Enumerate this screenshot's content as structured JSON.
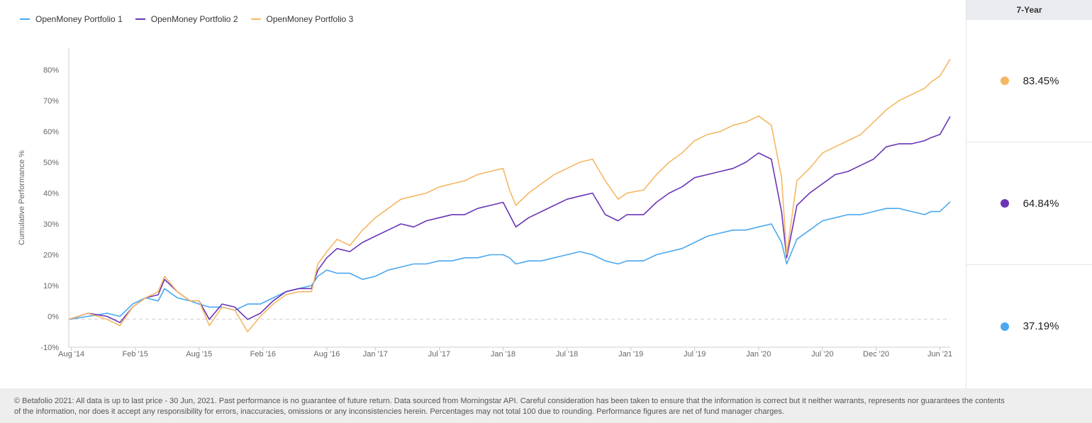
{
  "chart_data": {
    "type": "line",
    "ylabel": "Cumulative Performance %",
    "ylim": [
      -10,
      87
    ],
    "yticks": [
      -10,
      0,
      10,
      20,
      30,
      40,
      50,
      60,
      70,
      80
    ],
    "ytick_labels": [
      "-10%",
      "0%",
      "10%",
      "20%",
      "30%",
      "40%",
      "50%",
      "60%",
      "70%",
      "80%"
    ],
    "x_tick_labels": [
      "Aug '14",
      "Feb '15",
      "Aug '15",
      "Feb '16",
      "Aug '16",
      "Jan '17",
      "Jul '17",
      "Jan '18",
      "Jul '18",
      "Jan '19",
      "Jul '19",
      "Jan '20",
      "Jul '20",
      "Dec '20",
      "Jun '21"
    ],
    "x_tick_times": [
      2014.62,
      2015.12,
      2015.62,
      2016.12,
      2016.62,
      2017.0,
      2017.5,
      2018.0,
      2018.5,
      2019.0,
      2019.5,
      2020.0,
      2020.5,
      2020.92,
      2021.42
    ],
    "xlim": [
      2014.6,
      2021.5
    ],
    "grid": false,
    "legend_position": "top-left",
    "series": [
      {
        "name": "OpenMoney Portfolio 1",
        "color": "#4aa8f0",
        "x": [
          2014.6,
          2014.75,
          2014.9,
          2015.0,
          2015.1,
          2015.2,
          2015.3,
          2015.35,
          2015.45,
          2015.55,
          2015.62,
          2015.7,
          2015.8,
          2015.9,
          2016.0,
          2016.1,
          2016.2,
          2016.3,
          2016.4,
          2016.5,
          2016.55,
          2016.62,
          2016.7,
          2016.8,
          2016.9,
          2017.0,
          2017.1,
          2017.2,
          2017.3,
          2017.4,
          2017.5,
          2017.6,
          2017.7,
          2017.8,
          2017.9,
          2018.0,
          2018.05,
          2018.1,
          2018.2,
          2018.3,
          2018.4,
          2018.5,
          2018.6,
          2018.7,
          2018.8,
          2018.9,
          2018.97,
          2019.1,
          2019.2,
          2019.3,
          2019.4,
          2019.5,
          2019.6,
          2019.7,
          2019.8,
          2019.9,
          2020.0,
          2020.1,
          2020.18,
          2020.22,
          2020.3,
          2020.4,
          2020.5,
          2020.6,
          2020.7,
          2020.8,
          2020.9,
          2021.0,
          2021.1,
          2021.2,
          2021.3,
          2021.35,
          2021.42,
          2021.5
        ],
        "values": [
          -1,
          0,
          1,
          0,
          4,
          6,
          5,
          9,
          6,
          5,
          4,
          3,
          3,
          2,
          4,
          4,
          6,
          8,
          9,
          10,
          13,
          15,
          14,
          14,
          12,
          13,
          15,
          16,
          17,
          17,
          18,
          18,
          19,
          19,
          20,
          20,
          19,
          17,
          18,
          18,
          19,
          20,
          21,
          20,
          18,
          17,
          18,
          18,
          20,
          21,
          22,
          24,
          26,
          27,
          28,
          28,
          29,
          30,
          24,
          17,
          25,
          28,
          31,
          32,
          33,
          33,
          34,
          35,
          35,
          34,
          33,
          34,
          34,
          37.19
        ]
      },
      {
        "name": "OpenMoney Portfolio 2",
        "color": "#6a35b5",
        "x": [
          2014.6,
          2014.75,
          2014.9,
          2015.0,
          2015.1,
          2015.2,
          2015.3,
          2015.35,
          2015.45,
          2015.55,
          2015.62,
          2015.7,
          2015.8,
          2015.9,
          2016.0,
          2016.1,
          2016.2,
          2016.3,
          2016.4,
          2016.5,
          2016.55,
          2016.62,
          2016.7,
          2016.8,
          2016.9,
          2017.0,
          2017.1,
          2017.2,
          2017.3,
          2017.4,
          2017.5,
          2017.6,
          2017.7,
          2017.8,
          2017.9,
          2018.0,
          2018.05,
          2018.1,
          2018.2,
          2018.3,
          2018.4,
          2018.5,
          2018.6,
          2018.7,
          2018.8,
          2018.9,
          2018.97,
          2019.1,
          2019.2,
          2019.3,
          2019.4,
          2019.5,
          2019.6,
          2019.7,
          2019.8,
          2019.9,
          2020.0,
          2020.1,
          2020.18,
          2020.22,
          2020.3,
          2020.4,
          2020.5,
          2020.6,
          2020.7,
          2020.8,
          2020.9,
          2021.0,
          2021.1,
          2021.2,
          2021.3,
          2021.35,
          2021.42,
          2021.5
        ],
        "values": [
          -1,
          1,
          0,
          -2,
          3,
          6,
          7,
          12,
          8,
          5,
          5,
          -1,
          4,
          3,
          -1,
          1,
          5,
          8,
          9,
          9,
          15,
          19,
          22,
          21,
          24,
          26,
          28,
          30,
          29,
          31,
          32,
          33,
          33,
          35,
          36,
          37,
          33,
          29,
          32,
          34,
          36,
          38,
          39,
          40,
          33,
          31,
          33,
          33,
          37,
          40,
          42,
          45,
          46,
          47,
          48,
          50,
          53,
          51,
          34,
          19,
          36,
          40,
          43,
          46,
          47,
          49,
          51,
          55,
          56,
          56,
          57,
          58,
          59,
          64.84
        ]
      },
      {
        "name": "OpenMoney Portfolio 3",
        "color": "#f5b764",
        "x": [
          2014.6,
          2014.75,
          2014.9,
          2015.0,
          2015.1,
          2015.2,
          2015.3,
          2015.35,
          2015.45,
          2015.55,
          2015.62,
          2015.7,
          2015.8,
          2015.9,
          2016.0,
          2016.1,
          2016.2,
          2016.3,
          2016.4,
          2016.5,
          2016.55,
          2016.62,
          2016.7,
          2016.8,
          2016.9,
          2017.0,
          2017.1,
          2017.2,
          2017.3,
          2017.4,
          2017.5,
          2017.6,
          2017.7,
          2017.8,
          2017.9,
          2018.0,
          2018.05,
          2018.1,
          2018.2,
          2018.3,
          2018.4,
          2018.5,
          2018.6,
          2018.7,
          2018.8,
          2018.9,
          2018.97,
          2019.1,
          2019.2,
          2019.3,
          2019.4,
          2019.5,
          2019.6,
          2019.7,
          2019.8,
          2019.9,
          2020.0,
          2020.1,
          2020.18,
          2020.22,
          2020.3,
          2020.4,
          2020.5,
          2020.6,
          2020.7,
          2020.8,
          2020.9,
          2021.0,
          2021.1,
          2021.2,
          2021.3,
          2021.35,
          2021.42,
          2021.5
        ],
        "values": [
          -1,
          1,
          -1,
          -3,
          3,
          6,
          8,
          13,
          8,
          5,
          5,
          -3,
          3,
          2,
          -5,
          0,
          4,
          7,
          8,
          8,
          17,
          21,
          25,
          23,
          28,
          32,
          35,
          38,
          39,
          40,
          42,
          43,
          44,
          46,
          47,
          48,
          41,
          36,
          40,
          43,
          46,
          48,
          50,
          51,
          44,
          38,
          40,
          41,
          46,
          50,
          53,
          57,
          59,
          60,
          62,
          63,
          65,
          62,
          45,
          20,
          44,
          48,
          53,
          55,
          57,
          59,
          63,
          67,
          70,
          72,
          74,
          76,
          78,
          83.45
        ]
      }
    ]
  },
  "side_panel": {
    "period_label": "7-Year",
    "rows": [
      {
        "value": "83.45%",
        "color": "#f5b764"
      },
      {
        "value": "64.84%",
        "color": "#6a35b5"
      },
      {
        "value": "37.19%",
        "color": "#4aa8f0"
      }
    ]
  },
  "footer": {
    "line1": "© Betafolio 2021: All data is up to last price - 30 Jun, 2021. Past performance is no guarantee of future return. Data sourced from Morningstar API. Careful consideration has been taken to ensure that the information is correct but it neither warrants, represents nor guarantees the contents",
    "line2": "of the information, nor does it accept any responsibility for errors, inaccuracies, omissions or any inconsistencies herein. Percentages may not total 100 due to rounding. Performance figures are net of fund manager charges."
  }
}
